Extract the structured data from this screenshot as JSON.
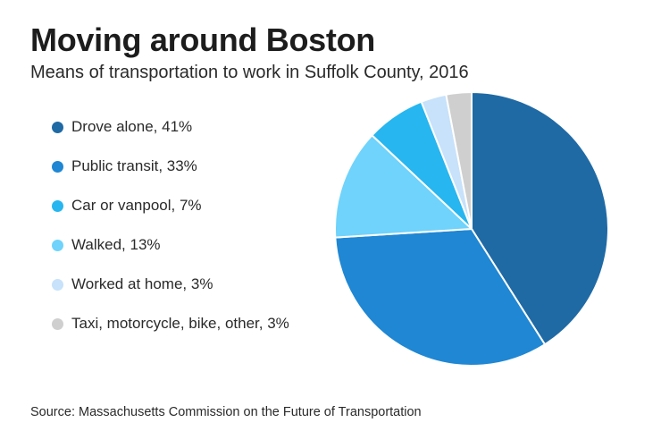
{
  "chart_data": {
    "type": "pie",
    "title": "Moving around Boston",
    "subtitle": "Means of transportation to work in Suffolk County, 2016",
    "legend_placement": "left",
    "slices": [
      {
        "label": "Drove alone, 41%",
        "value": 41,
        "color": "#1f6aa5"
      },
      {
        "label": "Public transit, 33%",
        "value": 33,
        "color": "#1f87d3"
      },
      {
        "label": "Car or vanpool, 7%",
        "value": 7,
        "color": "#27b6ef"
      },
      {
        "label": "Walked, 13%",
        "value": 13,
        "color": "#6fd3fb"
      },
      {
        "label": "Worked at home, 3%",
        "value": 3,
        "color": "#c7e2fa"
      },
      {
        "label": "Taxi, motorcycle, bike, other, 3%",
        "value": 3,
        "color": "#cfcfcf"
      }
    ],
    "pie_order": [
      0,
      1,
      3,
      2,
      4,
      5
    ],
    "source": "Source: Massachusetts Commission on the Future of Transportation"
  }
}
